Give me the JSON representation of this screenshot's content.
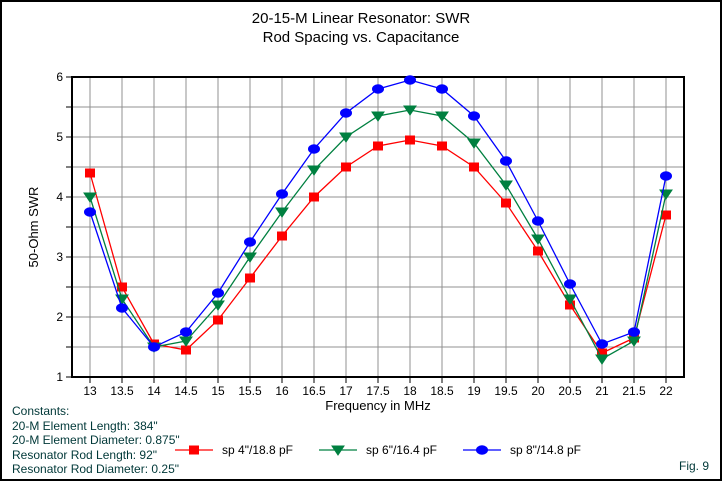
{
  "page": {
    "fig_label": "Fig. 9"
  },
  "constants": {
    "heading": "Constants:",
    "lines": [
      "20-M Element Length: 384\"",
      "20-M Element Diameter: 0.875\"",
      "Resonator Rod Length: 92\"",
      "Resonator Rod Diameter: 0.25\""
    ]
  },
  "colors": {
    "grid": "#909090",
    "axis": "#000000",
    "text": "#000000",
    "annotation": "#003838",
    "series_red": "#ff0000",
    "series_green": "#008040",
    "series_blue": "#0000ff"
  },
  "chart_data": {
    "type": "line",
    "title": "20-15-M Linear Resonator: SWR",
    "subtitle": "Rod Spacing vs. Capacitance",
    "xlabel": "Frequency in MHz",
    "ylabel": "50-Ohm SWR",
    "xlim": [
      13,
      22
    ],
    "ylim": [
      1,
      6
    ],
    "grid": true,
    "grid_step": 0.5,
    "legend_position": "bottom",
    "x_ticks": [
      13,
      13.5,
      14,
      14.5,
      15,
      15.5,
      16,
      16.5,
      17,
      17.5,
      18,
      18.5,
      19,
      19.5,
      20,
      20.5,
      21,
      21.5,
      22
    ],
    "y_ticks": [
      1,
      2,
      3,
      4,
      5,
      6
    ],
    "y_minor_step": 0.5,
    "x": [
      13,
      13.5,
      14,
      14.5,
      15,
      15.5,
      16,
      16.5,
      17,
      17.5,
      18,
      18.5,
      19,
      19.5,
      20,
      20.5,
      21,
      21.5,
      22
    ],
    "series": [
      {
        "name": "sp 4\"/18.8 pF",
        "color": "#ff0000",
        "marker": "square",
        "values": [
          4.4,
          2.5,
          1.55,
          1.45,
          1.95,
          2.65,
          3.35,
          4.0,
          4.5,
          4.85,
          4.95,
          4.85,
          4.5,
          3.9,
          3.1,
          2.2,
          1.4,
          1.65,
          3.7
        ]
      },
      {
        "name": "sp 6\"/16.4 pF",
        "color": "#008040",
        "marker": "triangle-down",
        "values": [
          4.0,
          2.3,
          1.5,
          1.6,
          2.2,
          3.0,
          3.75,
          4.45,
          5.0,
          5.35,
          5.45,
          5.35,
          4.9,
          4.2,
          3.3,
          2.3,
          1.3,
          1.6,
          4.05
        ]
      },
      {
        "name": "sp 8\"/14.8 pF",
        "color": "#0000ff",
        "marker": "circle",
        "values": [
          3.75,
          2.15,
          1.5,
          1.75,
          2.4,
          3.25,
          4.05,
          4.8,
          5.4,
          5.8,
          5.95,
          5.8,
          5.35,
          4.6,
          3.6,
          2.55,
          1.55,
          1.75,
          4.35
        ]
      }
    ]
  }
}
